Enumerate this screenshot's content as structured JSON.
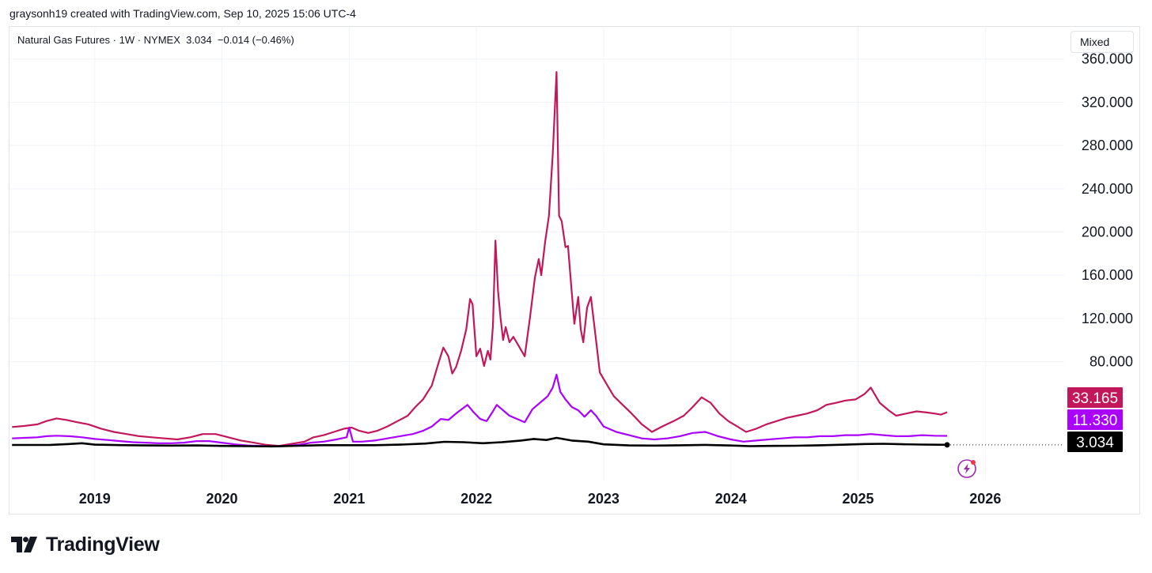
{
  "attribution": "graysonh19 created with TradingView.com, Sep 10, 2025 15:06 UTC-4",
  "legend": {
    "symbol": "Natural Gas Futures",
    "interval": "1W",
    "exchange": "NYMEX",
    "last": "3.034",
    "change": "−0.014 (−0.46%)"
  },
  "scale_button": "Mixed",
  "brand": "TradingView",
  "colors": {
    "crimson": "#c2185b",
    "purple": "#aa00ff",
    "black": "#000000",
    "grid": "#f0f3fa"
  },
  "icons": [
    "lightning-icon",
    "tradingview-logo-icon"
  ],
  "chart_data": {
    "type": "line",
    "x_label": "",
    "y_label": "",
    "x_ticks": [
      "2019",
      "2020",
      "2021",
      "2022",
      "2023",
      "2024",
      "2025",
      "2026"
    ],
    "y_ticks": [
      "80.000",
      "120.000",
      "160.000",
      "200.000",
      "240.000",
      "280.000",
      "320.000",
      "360.000"
    ],
    "y_range": [
      -30,
      362
    ],
    "x_range": [
      2018.33,
      2026.62
    ],
    "grid": true,
    "series": [
      {
        "color": "#c2185b",
        "last_label": "33.165",
        "points": [
          [
            2018.35,
            19.5
          ],
          [
            2018.45,
            20.5
          ],
          [
            2018.55,
            22
          ],
          [
            2018.62,
            25
          ],
          [
            2018.7,
            27.5
          ],
          [
            2018.78,
            26
          ],
          [
            2018.86,
            24
          ],
          [
            2018.95,
            22
          ],
          [
            2019.05,
            18
          ],
          [
            2019.15,
            15
          ],
          [
            2019.25,
            13
          ],
          [
            2019.35,
            11
          ],
          [
            2019.45,
            10
          ],
          [
            2019.55,
            9
          ],
          [
            2019.65,
            8
          ],
          [
            2019.75,
            10
          ],
          [
            2019.85,
            13
          ],
          [
            2019.95,
            13
          ],
          [
            2020.05,
            10
          ],
          [
            2020.15,
            7
          ],
          [
            2020.25,
            5
          ],
          [
            2020.35,
            3
          ],
          [
            2020.45,
            2
          ],
          [
            2020.55,
            4
          ],
          [
            2020.65,
            6
          ],
          [
            2020.72,
            10
          ],
          [
            2020.8,
            12
          ],
          [
            2020.88,
            15
          ],
          [
            2020.96,
            18
          ],
          [
            2021.02,
            19
          ],
          [
            2021.08,
            16
          ],
          [
            2021.15,
            14
          ],
          [
            2021.22,
            16
          ],
          [
            2021.3,
            20
          ],
          [
            2021.38,
            25
          ],
          [
            2021.46,
            30
          ],
          [
            2021.52,
            38
          ],
          [
            2021.58,
            45
          ],
          [
            2021.65,
            58
          ],
          [
            2021.7,
            78
          ],
          [
            2021.74,
            93
          ],
          [
            2021.78,
            85
          ],
          [
            2021.81,
            69
          ],
          [
            2021.84,
            75
          ],
          [
            2021.88,
            90
          ],
          [
            2021.92,
            110
          ],
          [
            2021.95,
            138
          ],
          [
            2021.97,
            133
          ],
          [
            2022.0,
            85
          ],
          [
            2022.03,
            92
          ],
          [
            2022.06,
            76
          ],
          [
            2022.09,
            90
          ],
          [
            2022.11,
            82
          ],
          [
            2022.13,
            113
          ],
          [
            2022.15,
            192
          ],
          [
            2022.17,
            145
          ],
          [
            2022.19,
            120
          ],
          [
            2022.21,
            100
          ],
          [
            2022.23,
            112
          ],
          [
            2022.26,
            98
          ],
          [
            2022.29,
            103
          ],
          [
            2022.33,
            95
          ],
          [
            2022.38,
            85
          ],
          [
            2022.42,
            120
          ],
          [
            2022.46,
            158
          ],
          [
            2022.49,
            175
          ],
          [
            2022.51,
            160
          ],
          [
            2022.54,
            191
          ],
          [
            2022.57,
            215
          ],
          [
            2022.6,
            272
          ],
          [
            2022.63,
            348
          ],
          [
            2022.65,
            215
          ],
          [
            2022.67,
            210
          ],
          [
            2022.7,
            186
          ],
          [
            2022.72,
            187
          ],
          [
            2022.74,
            158
          ],
          [
            2022.77,
            115
          ],
          [
            2022.8,
            140
          ],
          [
            2022.82,
            110
          ],
          [
            2022.84,
            98
          ],
          [
            2022.87,
            130
          ],
          [
            2022.9,
            140
          ],
          [
            2022.93,
            110
          ],
          [
            2022.97,
            70
          ],
          [
            2023.03,
            58
          ],
          [
            2023.08,
            48
          ],
          [
            2023.15,
            40
          ],
          [
            2023.22,
            32
          ],
          [
            2023.3,
            22
          ],
          [
            2023.38,
            15
          ],
          [
            2023.46,
            20
          ],
          [
            2023.55,
            25
          ],
          [
            2023.63,
            30
          ],
          [
            2023.7,
            38
          ],
          [
            2023.77,
            47
          ],
          [
            2023.84,
            42
          ],
          [
            2023.91,
            32
          ],
          [
            2023.98,
            25
          ],
          [
            2024.05,
            20
          ],
          [
            2024.12,
            15
          ],
          [
            2024.2,
            18
          ],
          [
            2024.28,
            22
          ],
          [
            2024.36,
            25
          ],
          [
            2024.44,
            28
          ],
          [
            2024.52,
            30
          ],
          [
            2024.6,
            32
          ],
          [
            2024.68,
            35
          ],
          [
            2024.75,
            40
          ],
          [
            2024.83,
            42
          ],
          [
            2024.9,
            44
          ],
          [
            2024.98,
            45
          ],
          [
            2025.05,
            50
          ],
          [
            2025.1,
            56
          ],
          [
            2025.17,
            42
          ],
          [
            2025.24,
            35
          ],
          [
            2025.3,
            30
          ],
          [
            2025.38,
            32
          ],
          [
            2025.46,
            34
          ],
          [
            2025.54,
            33
          ],
          [
            2025.6,
            32
          ],
          [
            2025.65,
            31
          ],
          [
            2025.7,
            33.165
          ]
        ]
      },
      {
        "color": "#aa00ff",
        "last_label": "11.330",
        "points": [
          [
            2018.35,
            9
          ],
          [
            2018.45,
            9.5
          ],
          [
            2018.55,
            10
          ],
          [
            2018.62,
            11
          ],
          [
            2018.7,
            11.5
          ],
          [
            2018.8,
            11
          ],
          [
            2018.9,
            10
          ],
          [
            2019.0,
            8.5
          ],
          [
            2019.1,
            7.5
          ],
          [
            2019.2,
            6.5
          ],
          [
            2019.3,
            5.5
          ],
          [
            2019.4,
            5
          ],
          [
            2019.5,
            4.5
          ],
          [
            2019.6,
            4.5
          ],
          [
            2019.7,
            5
          ],
          [
            2019.8,
            6.5
          ],
          [
            2019.9,
            6.5
          ],
          [
            2020.0,
            5
          ],
          [
            2020.1,
            3.5
          ],
          [
            2020.2,
            2.5
          ],
          [
            2020.3,
            2
          ],
          [
            2020.4,
            1.5
          ],
          [
            2020.5,
            2
          ],
          [
            2020.6,
            3
          ],
          [
            2020.7,
            5
          ],
          [
            2020.8,
            6
          ],
          [
            2020.9,
            8
          ],
          [
            2020.98,
            10
          ],
          [
            2021.0,
            19
          ],
          [
            2021.03,
            6
          ],
          [
            2021.1,
            6
          ],
          [
            2021.2,
            7
          ],
          [
            2021.3,
            9
          ],
          [
            2021.4,
            11
          ],
          [
            2021.5,
            13
          ],
          [
            2021.58,
            16
          ],
          [
            2021.65,
            20
          ],
          [
            2021.72,
            27
          ],
          [
            2021.78,
            26
          ],
          [
            2021.85,
            33
          ],
          [
            2021.93,
            40
          ],
          [
            2021.98,
            33
          ],
          [
            2022.03,
            27
          ],
          [
            2022.08,
            25
          ],
          [
            2022.13,
            34
          ],
          [
            2022.16,
            40
          ],
          [
            2022.2,
            36
          ],
          [
            2022.26,
            30
          ],
          [
            2022.32,
            27
          ],
          [
            2022.38,
            24
          ],
          [
            2022.44,
            36
          ],
          [
            2022.5,
            42
          ],
          [
            2022.56,
            48
          ],
          [
            2022.6,
            56
          ],
          [
            2022.63,
            68
          ],
          [
            2022.66,
            52
          ],
          [
            2022.7,
            45
          ],
          [
            2022.75,
            38
          ],
          [
            2022.8,
            35
          ],
          [
            2022.85,
            29
          ],
          [
            2022.9,
            35
          ],
          [
            2022.94,
            30
          ],
          [
            2023.0,
            20
          ],
          [
            2023.1,
            15
          ],
          [
            2023.2,
            12
          ],
          [
            2023.3,
            9
          ],
          [
            2023.4,
            8
          ],
          [
            2023.5,
            9
          ],
          [
            2023.6,
            11
          ],
          [
            2023.7,
            14
          ],
          [
            2023.8,
            15
          ],
          [
            2023.9,
            11
          ],
          [
            2024.0,
            8
          ],
          [
            2024.1,
            6
          ],
          [
            2024.2,
            7
          ],
          [
            2024.3,
            8
          ],
          [
            2024.4,
            9
          ],
          [
            2024.5,
            10
          ],
          [
            2024.6,
            10
          ],
          [
            2024.7,
            11
          ],
          [
            2024.8,
            11
          ],
          [
            2024.9,
            12
          ],
          [
            2025.0,
            12
          ],
          [
            2025.1,
            13
          ],
          [
            2025.2,
            12
          ],
          [
            2025.3,
            11
          ],
          [
            2025.4,
            11
          ],
          [
            2025.5,
            12
          ],
          [
            2025.6,
            11.5
          ],
          [
            2025.7,
            11.33
          ]
        ]
      },
      {
        "color": "#000000",
        "last_label": "3.034",
        "points": [
          [
            2018.35,
            2.9
          ],
          [
            2018.5,
            2.9
          ],
          [
            2018.65,
            3.0
          ],
          [
            2018.8,
            3.8
          ],
          [
            2018.9,
            4.5
          ],
          [
            2019.0,
            3.2
          ],
          [
            2019.2,
            2.8
          ],
          [
            2019.4,
            2.5
          ],
          [
            2019.6,
            2.3
          ],
          [
            2019.8,
            2.5
          ],
          [
            2020.0,
            2.0
          ],
          [
            2020.2,
            1.8
          ],
          [
            2020.4,
            1.6
          ],
          [
            2020.6,
            2.2
          ],
          [
            2020.8,
            2.8
          ],
          [
            2021.0,
            2.7
          ],
          [
            2021.2,
            2.7
          ],
          [
            2021.4,
            3.2
          ],
          [
            2021.6,
            4.2
          ],
          [
            2021.75,
            5.8
          ],
          [
            2021.9,
            5.5
          ],
          [
            2022.05,
            4.5
          ],
          [
            2022.2,
            5.5
          ],
          [
            2022.35,
            7.0
          ],
          [
            2022.45,
            8.5
          ],
          [
            2022.55,
            7.5
          ],
          [
            2022.63,
            9.5
          ],
          [
            2022.75,
            7.0
          ],
          [
            2022.88,
            6.0
          ],
          [
            2023.0,
            3.5
          ],
          [
            2023.2,
            2.5
          ],
          [
            2023.4,
            2.3
          ],
          [
            2023.6,
            2.6
          ],
          [
            2023.8,
            3.0
          ],
          [
            2024.0,
            2.4
          ],
          [
            2024.15,
            1.8
          ],
          [
            2024.3,
            2.0
          ],
          [
            2024.5,
            2.2
          ],
          [
            2024.7,
            2.6
          ],
          [
            2024.9,
            3.2
          ],
          [
            2025.05,
            3.8
          ],
          [
            2025.2,
            4.0
          ],
          [
            2025.35,
            3.6
          ],
          [
            2025.5,
            3.3
          ],
          [
            2025.7,
            3.034
          ]
        ]
      }
    ]
  }
}
